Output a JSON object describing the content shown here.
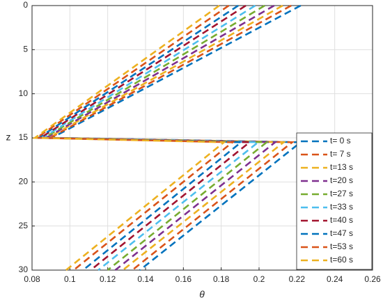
{
  "chart_data": {
    "type": "line",
    "xlabel": "θ",
    "ylabel": "z",
    "y": [
      0,
      15,
      15.5,
      30
    ],
    "series": [
      {
        "name": "t= 0 s",
        "color": "#0072BD",
        "values": [
          0.222,
          0.0905,
          0.222,
          0.137
        ]
      },
      {
        "name": "t= 7 s",
        "color": "#D95319",
        "values": [
          0.217,
          0.0895,
          0.2175,
          0.133
        ]
      },
      {
        "name": "t=13 s",
        "color": "#EDB120",
        "values": [
          0.2125,
          0.0885,
          0.213,
          0.128
        ]
      },
      {
        "name": "t=20 s",
        "color": "#7E2F8E",
        "values": [
          0.208,
          0.0875,
          0.2085,
          0.124
        ]
      },
      {
        "name": "t=27 s",
        "color": "#77AC30",
        "values": [
          0.203,
          0.0865,
          0.204,
          0.12
        ]
      },
      {
        "name": "t=33 s",
        "color": "#4DBEEE",
        "values": [
          0.198,
          0.0855,
          0.1995,
          0.115
        ]
      },
      {
        "name": "t=40 s",
        "color": "#A2142F",
        "values": [
          0.193,
          0.0845,
          0.195,
          0.111
        ]
      },
      {
        "name": "t=47 s",
        "color": "#0072BD",
        "values": [
          0.189,
          0.0835,
          0.1905,
          0.107
        ]
      },
      {
        "name": "t=53 s",
        "color": "#D95319",
        "values": [
          0.184,
          0.0825,
          0.186,
          0.102
        ]
      },
      {
        "name": "t=60 s",
        "color": "#EDB120",
        "values": [
          0.179,
          0.0815,
          0.1815,
          0.098
        ]
      }
    ],
    "xlim": [
      0.08,
      0.26
    ],
    "xticks": [
      0.08,
      0.1,
      0.12,
      0.14,
      0.16,
      0.18,
      0.2,
      0.22,
      0.24,
      0.26
    ],
    "ylim": [
      0,
      30
    ],
    "yticks": [
      0,
      5,
      10,
      15,
      20,
      25,
      30
    ],
    "y_reversed": true,
    "grid": true,
    "legend": "southeast"
  }
}
